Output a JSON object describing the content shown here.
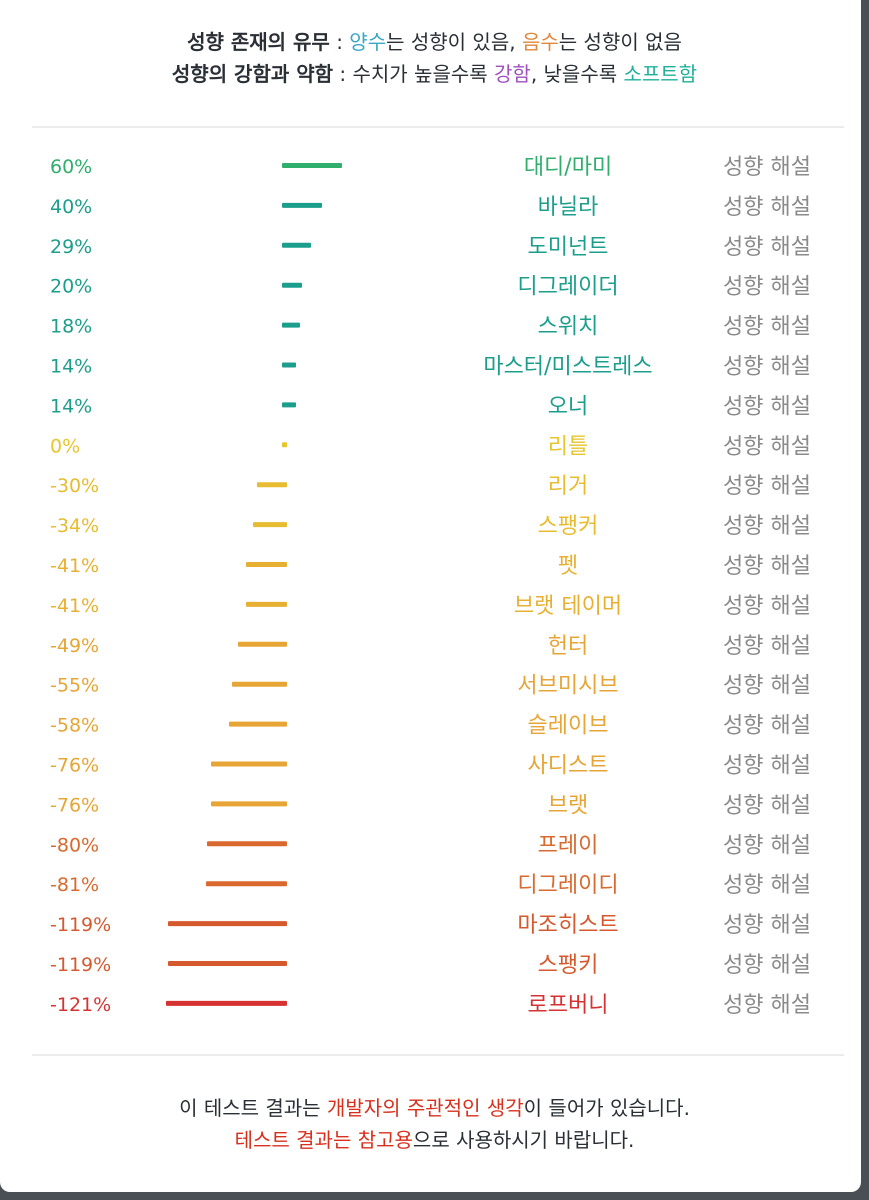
{
  "legend": {
    "line1": {
      "title": "성향 존재의 유무",
      "sep": " : ",
      "positive": "양수",
      "positive_suffix": "는 성향이 있음, ",
      "negative": "음수",
      "negative_suffix": "는 성향이 없음"
    },
    "line2": {
      "title": "성향의 강함과 약함",
      "sep": " : 수치가 높을수록 ",
      "strong": "강함",
      "middle": ", 낮을수록 ",
      "soft": "소프트함"
    }
  },
  "colors": {
    "positive": "#3aa7c7",
    "negative": "#e0873a",
    "strong": "#a14fc0",
    "soft": "#1fb09a",
    "text": "#2a2f36",
    "link": "#8a8a8a",
    "footer_red": "#d8301c"
  },
  "link_label": "성향 해설",
  "chart_data": {
    "type": "bar",
    "title": "",
    "xlabel": "",
    "ylabel": "",
    "xlim": [
      -121,
      60
    ],
    "categories": [
      "대디/마미",
      "바닐라",
      "도미넌트",
      "디그레이더",
      "스위치",
      "마스터/미스트레스",
      "오너",
      "리틀",
      "리거",
      "스팽커",
      "펫",
      "브랫 테이머",
      "헌터",
      "서브미시브",
      "슬레이브",
      "사디스트",
      "브랫",
      "프레이",
      "디그레이디",
      "마조히스트",
      "스팽키",
      "로프버니"
    ],
    "values": [
      60,
      40,
      29,
      20,
      18,
      14,
      14,
      0,
      -30,
      -34,
      -41,
      -41,
      -49,
      -55,
      -58,
      -76,
      -76,
      -80,
      -81,
      -119,
      -119,
      -121
    ],
    "value_labels": [
      "60%",
      "40%",
      "29%",
      "20%",
      "18%",
      "14%",
      "14%",
      "0%",
      "-30%",
      "-34%",
      "-41%",
      "-41%",
      "-49%",
      "-55%",
      "-58%",
      "-76%",
      "-76%",
      "-80%",
      "-81%",
      "-119%",
      "-119%",
      "-121%"
    ],
    "colors": [
      "#2fae6c",
      "#1c9e8c",
      "#1c9e8c",
      "#1c9e8c",
      "#1c9e8c",
      "#1c9e8c",
      "#1c9e8c",
      "#e6c52e",
      "#e8bc30",
      "#e8bc30",
      "#e8b032",
      "#e8b032",
      "#e6a535",
      "#e6a535",
      "#e6a535",
      "#e6a535",
      "#e6a535",
      "#d9692e",
      "#d9692e",
      "#d6592e",
      "#d6592e",
      "#d63232"
    ]
  },
  "footer": {
    "line1_a": "이 테스트 결과는 ",
    "line1_b": "개발자의 주관적인 생각",
    "line1_c": "이 들어가 있습니다.",
    "line2_a": "테스트 결과는 참고용",
    "line2_b": "으로 사용하시기 바랍니다."
  }
}
